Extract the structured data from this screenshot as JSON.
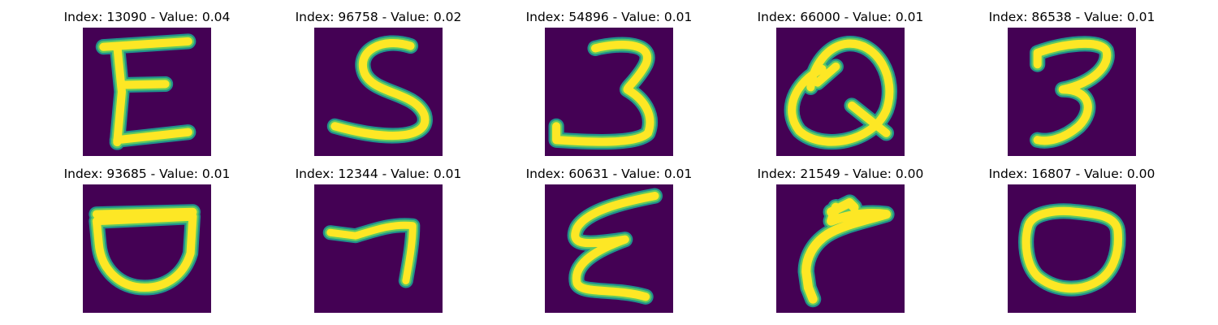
{
  "colors": {
    "background": "#440154",
    "stroke_edge": "#21918c",
    "stroke_mid": "#5ec962",
    "stroke_core": "#fde725"
  },
  "panels": [
    {
      "index": "13090",
      "value": "0.04",
      "glyph": "E"
    },
    {
      "index": "96758",
      "value": "0.02",
      "glyph": "S"
    },
    {
      "index": "54896",
      "value": "0.01",
      "glyph": "3"
    },
    {
      "index": "66000",
      "value": "0.01",
      "glyph": "Q"
    },
    {
      "index": "86538",
      "value": "0.01",
      "glyph": "3"
    },
    {
      "index": "93685",
      "value": "0.01",
      "glyph": "D"
    },
    {
      "index": "12344",
      "value": "0.01",
      "glyph": "7"
    },
    {
      "index": "60631",
      "value": "0.01",
      "glyph": "E"
    },
    {
      "index": "21549",
      "value": "0.00",
      "glyph": "r"
    },
    {
      "index": "16807",
      "value": "0.00",
      "glyph": "O"
    }
  ]
}
